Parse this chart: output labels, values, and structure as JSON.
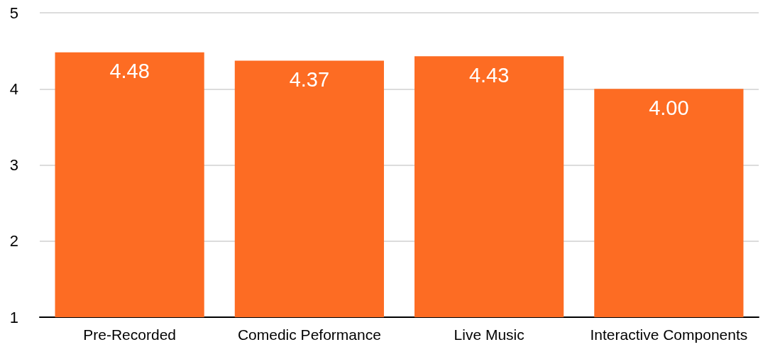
{
  "chart_data": {
    "type": "bar",
    "categories": [
      "Pre-Recorded",
      "Comedic Peformance",
      "Live Music",
      "Interactive Components"
    ],
    "values": [
      4.48,
      4.37,
      4.43,
      4.0
    ],
    "value_labels": [
      "4.48",
      "4.37",
      "4.43",
      "4.00"
    ],
    "color": "#fd6c23",
    "ylim": [
      1,
      5
    ],
    "yticks": [
      1,
      2,
      3,
      4,
      5
    ],
    "grid": "y"
  }
}
